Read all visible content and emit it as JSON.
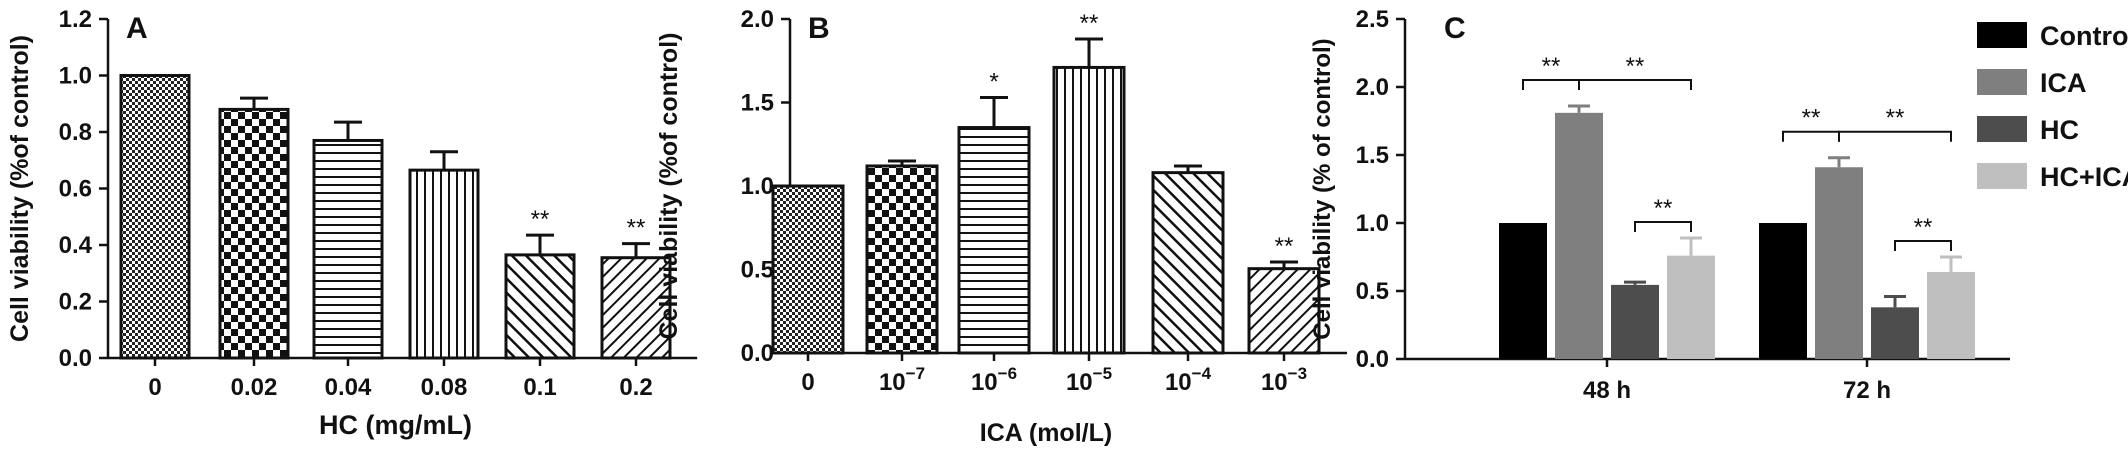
{
  "chart_data": [
    {
      "type": "bar",
      "panel": "A",
      "title": "",
      "xlabel": "HC (mg/mL)",
      "ylabel": "Cell viability (%of control)",
      "ylim": [
        0,
        1.2
      ],
      "yticks": [
        "0.0",
        "0.2",
        "0.4",
        "0.6",
        "0.8",
        "1.0",
        "1.2"
      ],
      "categories": [
        "0",
        "0.02",
        "0.04",
        "0.08",
        "0.1",
        "0.2"
      ],
      "values": [
        1.0,
        0.88,
        0.77,
        0.665,
        0.365,
        0.355
      ],
      "errors": [
        0,
        0.04,
        0.065,
        0.065,
        0.07,
        0.05
      ],
      "significance": [
        "",
        "",
        "",
        "",
        "**",
        "**"
      ],
      "patterns": [
        "checker-fine",
        "checker-coarse",
        "horizontal",
        "vertical",
        "diagonal-up",
        "diagonal-down"
      ],
      "grid": false
    },
    {
      "type": "bar",
      "panel": "B",
      "title": "",
      "xlabel": "ICA (mol/L)",
      "ylabel": "Cell viability (%of control)",
      "ylim": [
        0,
        2.0
      ],
      "yticks": [
        "0.0",
        "0.5",
        "1.0",
        "1.5",
        "2.0"
      ],
      "categories": [
        {
          "base": "0",
          "exp": ""
        },
        {
          "base": "10",
          "exp": "−7"
        },
        {
          "base": "10",
          "exp": "−6"
        },
        {
          "base": "10",
          "exp": "−5"
        },
        {
          "base": "10",
          "exp": "−4"
        },
        {
          "base": "10",
          "exp": "−3"
        }
      ],
      "values": [
        1.0,
        1.12,
        1.35,
        1.71,
        1.08,
        0.505
      ],
      "errors": [
        0,
        0.03,
        0.18,
        0.17,
        0.04,
        0.04
      ],
      "significance": [
        "",
        "",
        "*",
        "**",
        "",
        "**"
      ],
      "patterns": [
        "checker-fine",
        "checker-coarse",
        "horizontal",
        "vertical",
        "diagonal-up",
        "diagonal-down"
      ],
      "grid": false
    },
    {
      "type": "bar",
      "panel": "C",
      "title": "",
      "xlabel": "",
      "ylabel": "Cell viability (% of control)",
      "ylim": [
        0,
        2.5
      ],
      "yticks": [
        "0.0",
        "0.5",
        "1.0",
        "1.5",
        "2.0",
        "2.5"
      ],
      "categories": [
        "48 h",
        "72 h"
      ],
      "series": [
        {
          "name": "Control",
          "color": "#000000",
          "values": [
            1.0,
            1.0
          ],
          "errors": [
            0,
            0
          ]
        },
        {
          "name": "ICA",
          "color": "#7f7f7f",
          "values": [
            1.81,
            1.41
          ],
          "errors": [
            0.05,
            0.07
          ]
        },
        {
          "name": "HC",
          "color": "#4d4d4d",
          "values": [
            0.545,
            0.38
          ],
          "errors": [
            0.02,
            0.08
          ]
        },
        {
          "name": "HC+ICA",
          "color": "#bfbfbf",
          "values": [
            0.76,
            0.64
          ],
          "errors": [
            0.13,
            0.11
          ]
        }
      ],
      "brackets": [
        {
          "group": 0,
          "from": 0,
          "to": 1,
          "label": "**"
        },
        {
          "group": 0,
          "from": 1,
          "to": 3,
          "label": "**"
        },
        {
          "group": 0,
          "from": 2,
          "to": 3,
          "label": "**"
        },
        {
          "group": 1,
          "from": 0,
          "to": 1,
          "label": "**"
        },
        {
          "group": 1,
          "from": 1,
          "to": 3,
          "label": "**"
        },
        {
          "group": 1,
          "from": 2,
          "to": 3,
          "label": "**"
        }
      ],
      "legend_position": "right",
      "grid": false
    }
  ]
}
